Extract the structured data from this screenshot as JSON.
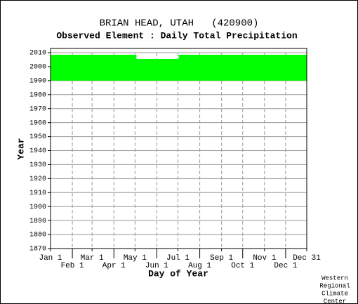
{
  "chart_data": {
    "type": "coverage",
    "title": "BRIAN HEAD, UTAH   (420900)",
    "subtitle": "Observed Element : Daily Total Precipitation",
    "xlabel": "Day of Year",
    "ylabel": "Year",
    "xlim": [
      1,
      365
    ],
    "ylim": [
      1870,
      2010
    ],
    "xticks": [
      {
        "value": 1,
        "label": "Jan 1"
      },
      {
        "value": 32,
        "label": "Feb 1"
      },
      {
        "value": 60,
        "label": "Mar 1"
      },
      {
        "value": 91,
        "label": "Apr 1"
      },
      {
        "value": 121,
        "label": "May 1"
      },
      {
        "value": 152,
        "label": "Jun 1"
      },
      {
        "value": 182,
        "label": "Jul 1"
      },
      {
        "value": 213,
        "label": "Aug 1"
      },
      {
        "value": 244,
        "label": "Sep 1"
      },
      {
        "value": 274,
        "label": "Oct 1"
      },
      {
        "value": 305,
        "label": "Nov 1"
      },
      {
        "value": 335,
        "label": "Dec 1"
      },
      {
        "value": 365,
        "label": "Dec 31"
      }
    ],
    "yticks": [
      1870,
      1880,
      1890,
      1900,
      1910,
      1920,
      1930,
      1940,
      1950,
      1960,
      1970,
      1980,
      1990,
      2000,
      2010
    ],
    "color": "#00ff00",
    "blocks": [
      {
        "days": [
          1,
          365
        ],
        "years": [
          1990,
          2005.5
        ]
      },
      {
        "days": [
          1,
          123
        ],
        "years": [
          2005.5,
          2008.5
        ]
      },
      {
        "days": [
          183,
          365
        ],
        "years": [
          2005.5,
          2008.5
        ]
      }
    ],
    "credit": [
      "Western",
      "Regional",
      "Climate",
      "Center"
    ]
  }
}
